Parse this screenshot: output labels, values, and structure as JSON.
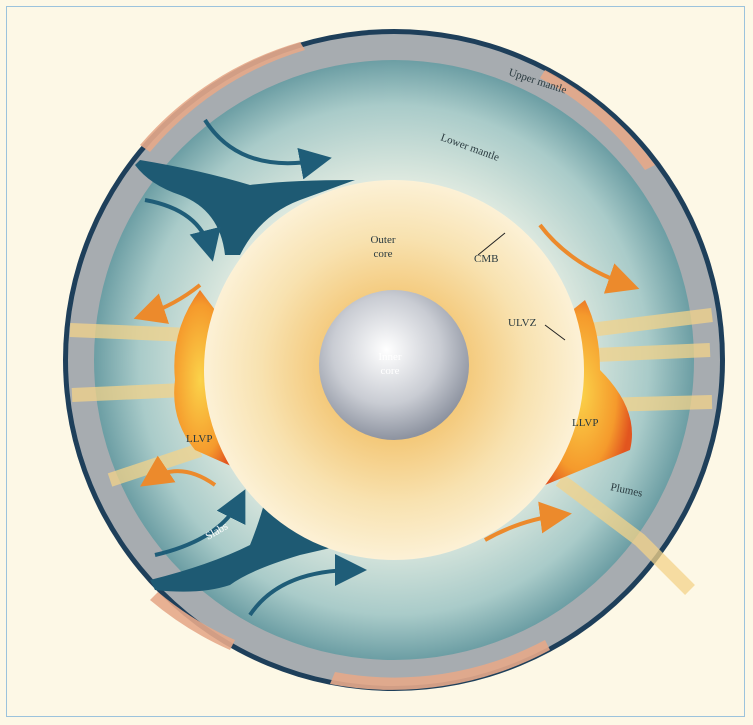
{
  "labels": {
    "upper_mantle": "Upper mantle",
    "lower_mantle": "Lower mantle",
    "outer_core": [
      "Outer",
      "core"
    ],
    "cmb": "CMB",
    "inner_core": [
      "Inner",
      "core"
    ],
    "ulvz": "ULVZ",
    "llvp_left": "LLVP",
    "llvp_right": "LLVP",
    "plumes": "Plumes",
    "slabs": "Slabs"
  }
}
